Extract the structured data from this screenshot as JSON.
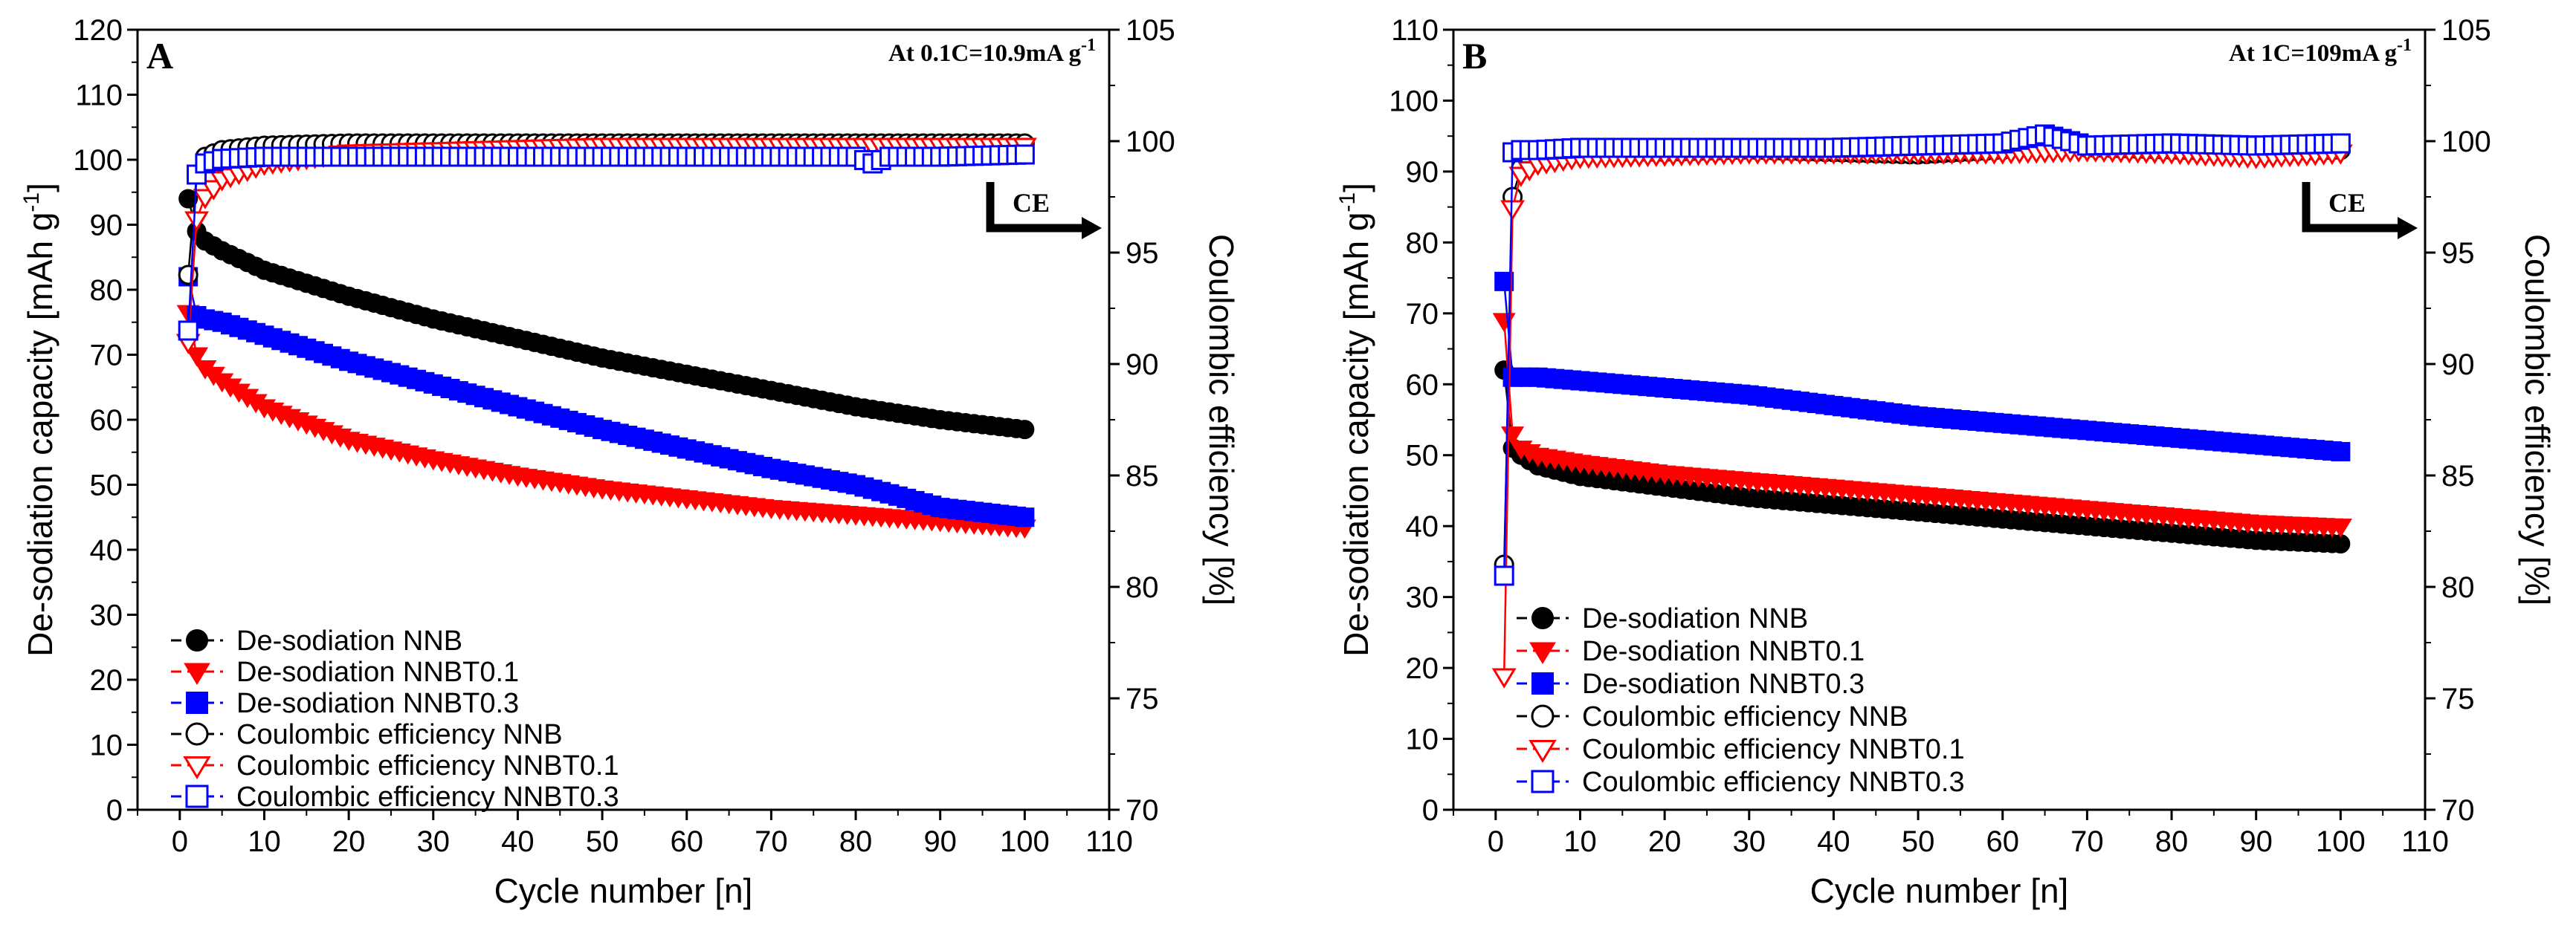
{
  "colors": {
    "NNB": "#000000",
    "NNBT0.1": "#ff0000",
    "NNBT0.3": "#0000ff",
    "axis": "#000000",
    "background": "#ffffff"
  },
  "chart_data": [
    {
      "type": "scatter",
      "panel": "A",
      "annotation": "At 0.1C=10.9mA g",
      "annotation_sup": "-1",
      "ce_label": "CE",
      "xlabel": "Cycle number [n]",
      "ylabel": "De-sodiation capacity [mAh g",
      "ylabel_sup": "-1",
      "ylabel_end": "]",
      "y2label": "Coulombic efficiency [%]",
      "xlim": [
        -5,
        110
      ],
      "ylim": [
        0,
        120
      ],
      "y2lim": [
        70,
        105
      ],
      "xticks": [
        0,
        10,
        20,
        30,
        40,
        50,
        60,
        70,
        80,
        90,
        100,
        110
      ],
      "yticks": [
        0,
        10,
        20,
        30,
        40,
        50,
        60,
        70,
        80,
        90,
        100,
        110,
        120
      ],
      "y2ticks": [
        70,
        75,
        80,
        85,
        90,
        95,
        100,
        105
      ],
      "legend": [
        "De-sodiation NNB",
        "De-sodiation NNBT0.1",
        "De-sodiation NNBT0.3",
        "Coulombic efficiency NNB",
        "Coulombic efficiency NNBT0.1",
        "Coulombic efficiency NNBT0.3"
      ],
      "series": [
        {
          "name": "De-sodiation NNB",
          "axis": "left",
          "marker": "circle-filled",
          "color": "#000000",
          "x": [
            1,
            2,
            3,
            5,
            10,
            20,
            30,
            40,
            50,
            60,
            70,
            80,
            90,
            100
          ],
          "y": [
            94,
            89,
            87.5,
            86,
            83,
            79,
            75.5,
            72.5,
            69.5,
            67,
            64.5,
            62,
            60,
            58.5
          ]
        },
        {
          "name": "De-sodiation NNBT0.1",
          "axis": "left",
          "marker": "triangle-down-filled",
          "color": "#ff0000",
          "x": [
            1,
            2,
            3,
            5,
            10,
            20,
            30,
            40,
            50,
            60,
            70,
            80,
            90,
            100
          ],
          "y": [
            76.5,
            70,
            68,
            66,
            62,
            57,
            54,
            51.5,
            49.5,
            48,
            46.5,
            45.5,
            44.5,
            43.5
          ]
        },
        {
          "name": "De-sodiation NNBT0.3",
          "axis": "left",
          "marker": "square-filled",
          "color": "#0000ff",
          "x": [
            1,
            2,
            3,
            5,
            10,
            20,
            30,
            40,
            50,
            60,
            70,
            80,
            90,
            100
          ],
          "y": [
            82,
            76,
            75.5,
            75,
            73,
            69,
            65.5,
            62,
            58.5,
            55.5,
            52.5,
            50,
            46.5,
            45
          ]
        },
        {
          "name": "Coulombic efficiency NNB",
          "axis": "right",
          "marker": "circle-open",
          "color": "#000000",
          "x": [
            1,
            2,
            3,
            5,
            10,
            20,
            30,
            40,
            50,
            60,
            70,
            80,
            90,
            100
          ],
          "y": [
            94,
            98.5,
            99.3,
            99.6,
            99.8,
            99.9,
            99.9,
            99.9,
            99.9,
            99.9,
            99.9,
            99.9,
            99.9,
            99.9
          ]
        },
        {
          "name": "Coulombic efficiency NNBT0.1",
          "axis": "right",
          "marker": "triangle-down-open",
          "color": "#ff0000",
          "x": [
            1,
            2,
            3,
            5,
            10,
            20,
            30,
            40,
            50,
            60,
            70,
            80,
            90,
            100
          ],
          "y": [
            91,
            96.5,
            97.5,
            98.3,
            99,
            99.5,
            99.6,
            99.7,
            99.8,
            99.8,
            99.8,
            99.8,
            99.8,
            99.8
          ]
        },
        {
          "name": "Coulombic efficiency NNBT0.3",
          "axis": "right",
          "marker": "square-open",
          "color": "#0000ff",
          "x": [
            1,
            2,
            3,
            5,
            10,
            20,
            30,
            40,
            50,
            60,
            70,
            80,
            82,
            84,
            90,
            100
          ],
          "y": [
            91.5,
            98.5,
            99,
            99.2,
            99.3,
            99.3,
            99.3,
            99.3,
            99.3,
            99.3,
            99.3,
            99.3,
            99.0,
            99.3,
            99.3,
            99.4
          ]
        }
      ]
    },
    {
      "type": "scatter",
      "panel": "B",
      "annotation": "At 1C=109mA g",
      "annotation_sup": "-1",
      "ce_label": "CE",
      "xlabel": "Cycle number [n]",
      "ylabel": "De-sodiation capacity [mAh g",
      "ylabel_sup": "-1",
      "ylabel_end": "]",
      "y2label": "Coulombic efficiency [%]",
      "xlim": [
        -5,
        110
      ],
      "ylim": [
        0,
        110
      ],
      "y2lim": [
        70,
        105
      ],
      "xticks": [
        0,
        10,
        20,
        30,
        40,
        50,
        60,
        70,
        80,
        90,
        100,
        110
      ],
      "yticks": [
        0,
        10,
        20,
        30,
        40,
        50,
        60,
        70,
        80,
        90,
        100,
        110
      ],
      "y2ticks": [
        70,
        75,
        80,
        85,
        90,
        95,
        100,
        105
      ],
      "legend": [
        "De-sodiation NNB",
        "De-sodiation NNBT0.1",
        "De-sodiation NNBT0.3",
        "Coulombic efficiency NNB",
        "Coulombic efficiency NNBT0.1",
        "Coulombic efficiency NNBT0.3"
      ],
      "series": [
        {
          "name": "De-sodiation NNB",
          "axis": "left",
          "marker": "circle-filled",
          "color": "#000000",
          "x": [
            1,
            2,
            3,
            5,
            10,
            20,
            30,
            40,
            50,
            60,
            70,
            80,
            90,
            100
          ],
          "y": [
            62,
            51,
            50,
            48.5,
            47,
            45.5,
            44,
            43,
            42,
            41,
            40,
            39,
            38,
            37.5
          ]
        },
        {
          "name": "De-sodiation NNBT0.1",
          "axis": "left",
          "marker": "triangle-down-filled",
          "color": "#ff0000",
          "x": [
            1,
            2,
            3,
            5,
            10,
            20,
            30,
            40,
            50,
            60,
            70,
            80,
            90,
            100
          ],
          "y": [
            69,
            53,
            51,
            50,
            49,
            47.5,
            46.5,
            45.5,
            44.5,
            43.5,
            42.5,
            41.5,
            40.5,
            40
          ]
        },
        {
          "name": "De-sodiation NNBT0.3",
          "axis": "left",
          "marker": "square-filled",
          "color": "#0000ff",
          "x": [
            1,
            2,
            3,
            5,
            10,
            20,
            30,
            40,
            50,
            60,
            70,
            80,
            90,
            100
          ],
          "y": [
            74.5,
            61,
            61,
            61,
            60.5,
            59.5,
            58.5,
            57,
            55.5,
            54.5,
            53.5,
            52.5,
            51.5,
            50.5
          ]
        },
        {
          "name": "Coulombic efficiency NNB",
          "axis": "right",
          "marker": "circle-open",
          "color": "#000000",
          "x": [
            1,
            2,
            3,
            5,
            10,
            20,
            30,
            40,
            50,
            60,
            65,
            70,
            80,
            90,
            100
          ],
          "y": [
            81,
            97.5,
            98.8,
            99.3,
            99.5,
            99.5,
            99.6,
            99.5,
            99.4,
            99.6,
            100.2,
            99.7,
            99.6,
            99.5,
            99.6
          ]
        },
        {
          "name": "Coulombic efficiency NNBT0.1",
          "axis": "right",
          "marker": "triangle-down-open",
          "color": "#ff0000",
          "x": [
            1,
            2,
            3,
            5,
            10,
            20,
            30,
            40,
            50,
            60,
            70,
            80,
            90,
            100
          ],
          "y": [
            76,
            97,
            98.5,
            99.0,
            99.3,
            99.4,
            99.5,
            99.5,
            99.5,
            99.5,
            99.6,
            99.5,
            99.3,
            99.5
          ]
        },
        {
          "name": "Coulombic efficiency NNBT0.3",
          "axis": "right",
          "marker": "square-open",
          "color": "#0000ff",
          "x": [
            1,
            2,
            3,
            5,
            10,
            20,
            30,
            40,
            50,
            60,
            65,
            70,
            80,
            90,
            100
          ],
          "y": [
            80.5,
            99.5,
            99.6,
            99.6,
            99.7,
            99.7,
            99.7,
            99.7,
            99.8,
            99.9,
            100.3,
            99.8,
            99.9,
            99.8,
            99.9
          ]
        }
      ]
    }
  ]
}
